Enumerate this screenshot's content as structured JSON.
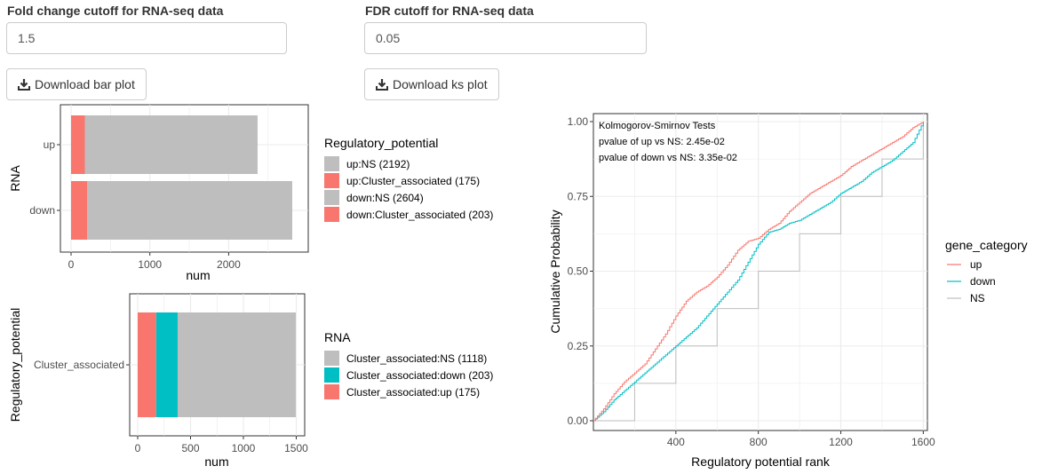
{
  "inputs": {
    "fc": {
      "label": "Fold change cutoff for RNA-seq data",
      "value": "1.5"
    },
    "fdr": {
      "label": "FDR cutoff for RNA-seq data",
      "value": "0.05"
    }
  },
  "buttons": {
    "bar": "Download bar plot",
    "ks": "Download ks plot"
  },
  "colors": {
    "red": "#F8766D",
    "cyan": "#00BFC4",
    "grey": "#BEBEBE",
    "panel_grid": "#EBEBEB"
  },
  "chart_data": [
    {
      "type": "bar",
      "orientation": "horizontal-stacked",
      "ylabel": "RNA",
      "xlabel": "num",
      "categories": [
        "up",
        "down"
      ],
      "series": [
        {
          "name": "up:Cluster_associated (175)",
          "category": "up",
          "value": 175,
          "color": "#F8766D"
        },
        {
          "name": "up:NS (2192)",
          "category": "up",
          "value": 2192,
          "color": "#BEBEBE"
        },
        {
          "name": "down:Cluster_associated (203)",
          "category": "down",
          "value": 203,
          "color": "#F8766D"
        },
        {
          "name": "down:NS (2604)",
          "category": "down",
          "value": 2604,
          "color": "#BEBEBE"
        }
      ],
      "xticks": [
        "0",
        "1000",
        "2000"
      ],
      "xlim": [
        0,
        2807
      ],
      "legend_title": "Regulatory_potential",
      "legend": [
        {
          "label": "up:NS (2192)",
          "color": "#BEBEBE"
        },
        {
          "label": "up:Cluster_associated (175)",
          "color": "#F8766D"
        },
        {
          "label": "down:NS (2604)",
          "color": "#BEBEBE"
        },
        {
          "label": "down:Cluster_associated (203)",
          "color": "#F8766D"
        }
      ]
    },
    {
      "type": "bar",
      "orientation": "horizontal-stacked",
      "ylabel": "Regulatory_potential",
      "xlabel": "num",
      "categories": [
        "Cluster_associated"
      ],
      "series": [
        {
          "name": "Cluster_associated:up (175)",
          "value": 175,
          "color": "#F8766D"
        },
        {
          "name": "Cluster_associated:down (203)",
          "value": 203,
          "color": "#00BFC4"
        },
        {
          "name": "Cluster_associated:NS (1118)",
          "value": 1118,
          "color": "#BEBEBE"
        }
      ],
      "xticks": [
        "0",
        "500",
        "1000",
        "1500"
      ],
      "xlim": [
        0,
        1496
      ],
      "legend_title": "RNA",
      "legend": [
        {
          "label": "Cluster_associated:NS (1118)",
          "color": "#BEBEBE"
        },
        {
          "label": "Cluster_associated:down (203)",
          "color": "#00BFC4"
        },
        {
          "label": "Cluster_associated:up (175)",
          "color": "#F8766D"
        }
      ]
    },
    {
      "type": "line",
      "xlabel": "Regulatory potential rank",
      "ylabel": "Cumulative Probability",
      "xticks": [
        "400",
        "800",
        "1200",
        "1600"
      ],
      "yticks": [
        "0.00",
        "0.25",
        "0.50",
        "0.75",
        "1.00"
      ],
      "xlim": [
        0,
        1620
      ],
      "ylim": [
        0,
        1
      ],
      "annotations": [
        "Kolmogorov-Smirnov Tests",
        "pvalue of up vs NS: 2.45e-02",
        "pvalue of down vs NS: 3.35e-02"
      ],
      "legend_title": "gene_category",
      "series": [
        {
          "name": "up",
          "color": "#F8766D",
          "x": [
            0,
            50,
            100,
            150,
            200,
            250,
            300,
            350,
            400,
            450,
            500,
            550,
            600,
            650,
            700,
            750,
            800,
            850,
            900,
            950,
            1000,
            1050,
            1100,
            1150,
            1200,
            1250,
            1300,
            1350,
            1400,
            1450,
            1500,
            1550,
            1600
          ],
          "y": [
            0.0,
            0.04,
            0.09,
            0.13,
            0.16,
            0.19,
            0.24,
            0.29,
            0.35,
            0.4,
            0.43,
            0.45,
            0.48,
            0.52,
            0.57,
            0.6,
            0.61,
            0.64,
            0.66,
            0.7,
            0.73,
            0.76,
            0.78,
            0.8,
            0.82,
            0.85,
            0.87,
            0.89,
            0.91,
            0.93,
            0.95,
            0.98,
            1.0
          ]
        },
        {
          "name": "down",
          "color": "#00BFC4",
          "x": [
            0,
            50,
            100,
            150,
            200,
            250,
            300,
            350,
            400,
            450,
            500,
            550,
            600,
            650,
            700,
            750,
            800,
            850,
            900,
            950,
            1000,
            1050,
            1100,
            1150,
            1200,
            1250,
            1300,
            1350,
            1400,
            1450,
            1500,
            1550,
            1600
          ],
          "y": [
            0.0,
            0.03,
            0.07,
            0.1,
            0.13,
            0.16,
            0.19,
            0.22,
            0.25,
            0.28,
            0.31,
            0.35,
            0.39,
            0.43,
            0.47,
            0.53,
            0.59,
            0.63,
            0.64,
            0.66,
            0.67,
            0.69,
            0.71,
            0.73,
            0.76,
            0.78,
            0.8,
            0.83,
            0.85,
            0.87,
            0.9,
            0.93,
            1.0
          ]
        },
        {
          "name": "NS",
          "color": "#BEBEBE",
          "x": [
            0,
            200,
            400,
            600,
            800,
            1000,
            1200,
            1400,
            1600
          ],
          "y": [
            0.0,
            0.125,
            0.25,
            0.375,
            0.5,
            0.625,
            0.75,
            0.875,
            1.0
          ]
        }
      ]
    }
  ]
}
